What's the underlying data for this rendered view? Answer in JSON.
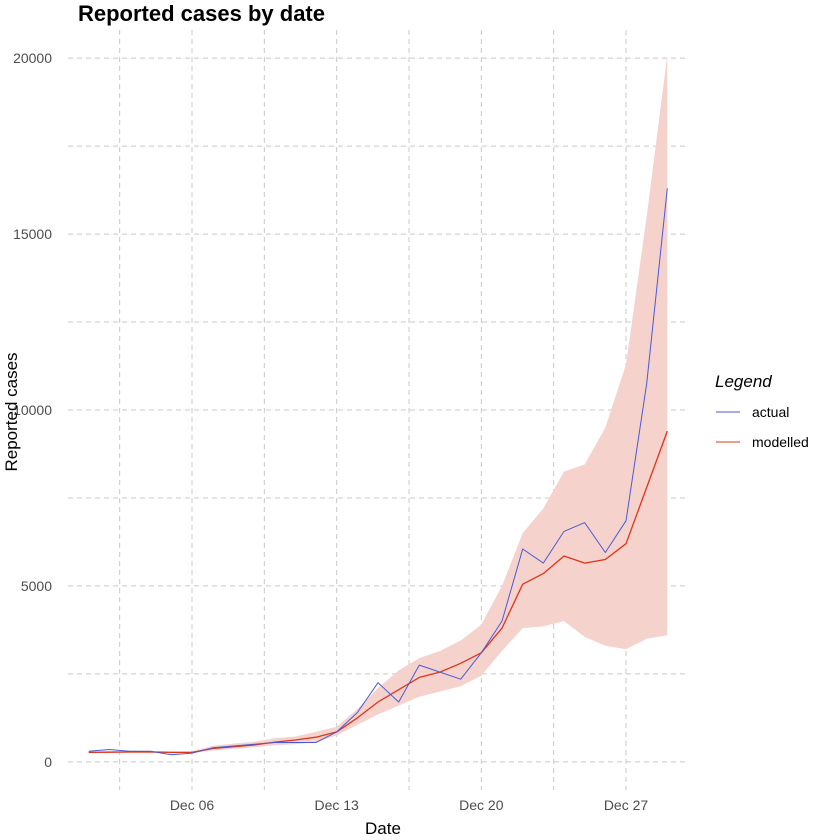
{
  "chart_data": {
    "type": "line",
    "title": "Reported cases by date",
    "xlabel": "Date",
    "ylabel": "Reported cases",
    "x_tick_labels": [
      "Dec 06",
      "Dec 13",
      "Dec 20",
      "Dec 27"
    ],
    "y_tick_labels": [
      "0",
      "5000",
      "10000",
      "15000",
      "20000"
    ],
    "ylim": [
      -800,
      20800
    ],
    "x": [
      "2020-12-01",
      "2020-12-02",
      "2020-12-03",
      "2020-12-04",
      "2020-12-05",
      "2020-12-06",
      "2020-12-07",
      "2020-12-08",
      "2020-12-09",
      "2020-12-10",
      "2020-12-11",
      "2020-12-12",
      "2020-12-13",
      "2020-12-14",
      "2020-12-15",
      "2020-12-16",
      "2020-12-17",
      "2020-12-18",
      "2020-12-19",
      "2020-12-20",
      "2020-12-21",
      "2020-12-22",
      "2020-12-23",
      "2020-12-24",
      "2020-12-25",
      "2020-12-26",
      "2020-12-27",
      "2020-12-28",
      "2020-12-29"
    ],
    "xlim": [
      "2020-11-30",
      "2020-12-30"
    ],
    "grid": true,
    "legend": {
      "title": "Legend",
      "position": "right"
    },
    "series": [
      {
        "name": "actual",
        "color": "#4a5ad6",
        "values": [
          300,
          350,
          300,
          300,
          200,
          250,
          400,
          450,
          500,
          550,
          550,
          550,
          850,
          1400,
          2250,
          1700,
          2750,
          2550,
          2350,
          3100,
          4000,
          6050,
          5650,
          6550,
          6800,
          5950,
          6850,
          10750,
          16300
        ]
      },
      {
        "name": "modelled",
        "color": "#e0341a",
        "values": [
          270,
          275,
          280,
          280,
          270,
          270,
          380,
          430,
          480,
          560,
          620,
          700,
          850,
          1250,
          1700,
          2050,
          2400,
          2550,
          2800,
          3100,
          3800,
          5050,
          5350,
          5850,
          5650,
          5750,
          6200,
          7800,
          9400
        ]
      }
    ],
    "band": {
      "series": "modelled",
      "color": "#f6d2cc",
      "lower": [
        250,
        255,
        260,
        260,
        250,
        250,
        320,
        370,
        410,
        470,
        500,
        560,
        750,
        1050,
        1350,
        1600,
        1850,
        2000,
        2150,
        2450,
        3150,
        3800,
        3850,
        4000,
        3550,
        3300,
        3200,
        3500,
        3600
      ],
      "upper": [
        300,
        305,
        310,
        310,
        300,
        300,
        460,
        520,
        570,
        670,
        720,
        850,
        1000,
        1500,
        2100,
        2600,
        2950,
        3150,
        3450,
        3900,
        5000,
        6500,
        7200,
        8250,
        8450,
        9500,
        11300,
        15500,
        20100
      ]
    }
  }
}
